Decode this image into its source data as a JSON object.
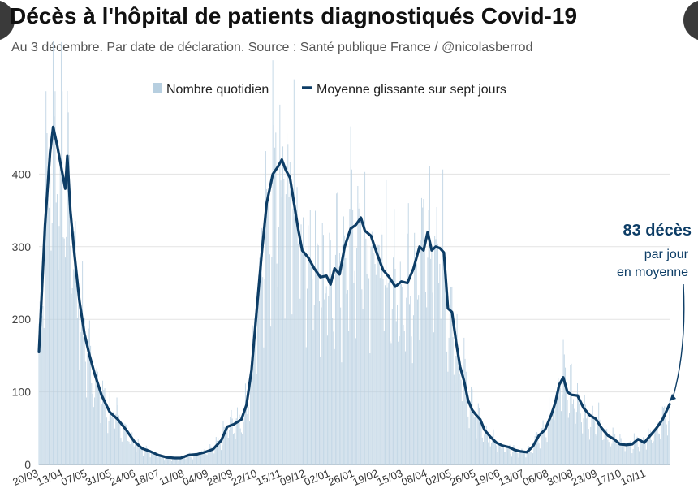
{
  "header": {
    "title": "Décès à l'hôpital de patients diagnostiqués Covid-19",
    "subtitle": "Au 3 décembre. Par date de déclaration. Source : Santé publique France / @nicolasberrod"
  },
  "colors": {
    "bar": "#b7cfe0",
    "line": "#0d3d66",
    "grid": "#e3e3e3",
    "callout": "#0d3d66"
  },
  "chart_data": {
    "type": "bar",
    "title": "Décès à l'hôpital de patients diagnostiqués Covid-19",
    "legend": {
      "position": "top",
      "bar_label": "Nombre quotidien",
      "line_label": "Moyenne glissante sur sept jours"
    },
    "ylim": [
      0,
      500
    ],
    "yticks": [
      0,
      100,
      200,
      300,
      400
    ],
    "xlim": [
      0,
      623
    ],
    "xticks": [
      {
        "day": 0,
        "label": "20/03"
      },
      {
        "day": 24,
        "label": "13/04"
      },
      {
        "day": 48,
        "label": "07/05"
      },
      {
        "day": 72,
        "label": "31/05"
      },
      {
        "day": 96,
        "label": "24/06"
      },
      {
        "day": 120,
        "label": "18/07"
      },
      {
        "day": 144,
        "label": "11/08"
      },
      {
        "day": 168,
        "label": "04/09"
      },
      {
        "day": 192,
        "label": "28/09"
      },
      {
        "day": 216,
        "label": "22/10"
      },
      {
        "day": 240,
        "label": "15/11"
      },
      {
        "day": 264,
        "label": "09/12"
      },
      {
        "day": 288,
        "label": "02/01"
      },
      {
        "day": 312,
        "label": "26/01"
      },
      {
        "day": 336,
        "label": "19/02"
      },
      {
        "day": 360,
        "label": "15/03"
      },
      {
        "day": 384,
        "label": "08/04"
      },
      {
        "day": 408,
        "label": "02/05"
      },
      {
        "day": 432,
        "label": "26/05"
      },
      {
        "day": 456,
        "label": "19/06"
      },
      {
        "day": 480,
        "label": "13/07"
      },
      {
        "day": 504,
        "label": "06/08"
      },
      {
        "day": 528,
        "label": "30/08"
      },
      {
        "day": 552,
        "label": "23/09"
      },
      {
        "day": 576,
        "label": "17/10"
      },
      {
        "day": 600,
        "label": "10/11"
      }
    ],
    "series": [
      {
        "name": "Moyenne glissante sur sept jours",
        "style": "line",
        "points": [
          [
            0,
            155
          ],
          [
            6,
            330
          ],
          [
            11,
            430
          ],
          [
            14,
            465
          ],
          [
            18,
            440
          ],
          [
            22,
            410
          ],
          [
            26,
            380
          ],
          [
            28,
            425
          ],
          [
            31,
            350
          ],
          [
            35,
            290
          ],
          [
            40,
            225
          ],
          [
            45,
            180
          ],
          [
            50,
            150
          ],
          [
            55,
            125
          ],
          [
            62,
            95
          ],
          [
            70,
            72
          ],
          [
            78,
            62
          ],
          [
            86,
            48
          ],
          [
            94,
            32
          ],
          [
            102,
            22
          ],
          [
            110,
            18
          ],
          [
            118,
            13
          ],
          [
            126,
            10
          ],
          [
            134,
            9
          ],
          [
            140,
            9
          ],
          [
            148,
            13
          ],
          [
            156,
            14
          ],
          [
            164,
            17
          ],
          [
            172,
            21
          ],
          [
            180,
            33
          ],
          [
            186,
            52
          ],
          [
            192,
            55
          ],
          [
            200,
            62
          ],
          [
            205,
            82
          ],
          [
            210,
            130
          ],
          [
            215,
            210
          ],
          [
            220,
            290
          ],
          [
            225,
            360
          ],
          [
            231,
            400
          ],
          [
            236,
            410
          ],
          [
            240,
            420
          ],
          [
            244,
            405
          ],
          [
            248,
            395
          ],
          [
            252,
            360
          ],
          [
            256,
            325
          ],
          [
            260,
            295
          ],
          [
            266,
            285
          ],
          [
            272,
            270
          ],
          [
            278,
            258
          ],
          [
            284,
            260
          ],
          [
            288,
            248
          ],
          [
            292,
            270
          ],
          [
            297,
            262
          ],
          [
            302,
            300
          ],
          [
            308,
            325
          ],
          [
            313,
            330
          ],
          [
            318,
            340
          ],
          [
            322,
            322
          ],
          [
            328,
            315
          ],
          [
            334,
            290
          ],
          [
            340,
            268
          ],
          [
            346,
            258
          ],
          [
            352,
            245
          ],
          [
            358,
            252
          ],
          [
            364,
            250
          ],
          [
            370,
            270
          ],
          [
            376,
            300
          ],
          [
            380,
            295
          ],
          [
            384,
            320
          ],
          [
            388,
            295
          ],
          [
            392,
            300
          ],
          [
            396,
            298
          ],
          [
            400,
            292
          ],
          [
            404,
            215
          ],
          [
            408,
            210
          ],
          [
            412,
            170
          ],
          [
            416,
            135
          ],
          [
            420,
            115
          ],
          [
            424,
            88
          ],
          [
            428,
            75
          ],
          [
            432,
            68
          ],
          [
            436,
            62
          ],
          [
            440,
            48
          ],
          [
            446,
            38
          ],
          [
            452,
            30
          ],
          [
            458,
            26
          ],
          [
            464,
            24
          ],
          [
            470,
            20
          ],
          [
            476,
            18
          ],
          [
            482,
            17
          ],
          [
            488,
            25
          ],
          [
            494,
            40
          ],
          [
            500,
            48
          ],
          [
            506,
            68
          ],
          [
            510,
            85
          ],
          [
            514,
            110
          ],
          [
            518,
            120
          ],
          [
            522,
            100
          ],
          [
            526,
            96
          ],
          [
            532,
            95
          ],
          [
            538,
            78
          ],
          [
            544,
            68
          ],
          [
            550,
            63
          ],
          [
            556,
            50
          ],
          [
            562,
            40
          ],
          [
            568,
            35
          ],
          [
            574,
            28
          ],
          [
            580,
            27
          ],
          [
            586,
            28
          ],
          [
            592,
            35
          ],
          [
            598,
            30
          ],
          [
            604,
            40
          ],
          [
            610,
            50
          ],
          [
            616,
            62
          ],
          [
            623,
            83
          ]
        ]
      },
      {
        "name": "Nombre quotidien",
        "style": "bar",
        "derived_from_line_with_weekly_variation": true
      }
    ],
    "annotation": {
      "value_text": "83 décès",
      "line1": "par jour",
      "line2": "en moyenne",
      "day": 623,
      "value": 83
    }
  }
}
